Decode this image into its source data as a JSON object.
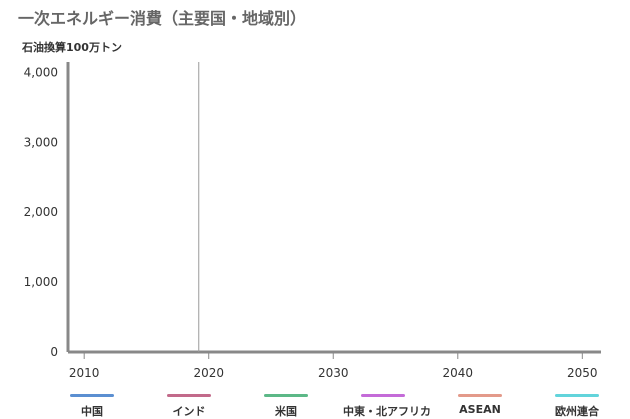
{
  "chart_data": {
    "type": "line",
    "title": "一次エネルギー消費（主要国・地域別）",
    "ylabel": "石油換算100万トン",
    "xlabel": "",
    "x_ticks": [
      2010,
      2020,
      2030,
      2040,
      2050
    ],
    "y_ticks": [
      0,
      1000,
      2000,
      3000,
      4000
    ],
    "y_tick_labels": [
      "0",
      "1,000",
      "2,000",
      "3,000",
      "4,000"
    ],
    "xlim": [
      2008.7,
      2051.5
    ],
    "ylim": [
      0,
      4150
    ],
    "reference_line_x": 2019.2,
    "grid": false,
    "legend_position": "bottom",
    "series": [
      {
        "name": "中国",
        "color": "#5b8fd1",
        "values": []
      },
      {
        "name": "インド",
        "color": "#c26a8a",
        "values": []
      },
      {
        "name": "米国",
        "color": "#5cb887",
        "values": []
      },
      {
        "name": "中東・北アフリカ",
        "color": "#c46bd8",
        "values": []
      },
      {
        "name": "ASEAN",
        "color": "#e39a8a",
        "values": []
      },
      {
        "name": "欧州連合",
        "color": "#62d4db",
        "values": []
      }
    ]
  }
}
